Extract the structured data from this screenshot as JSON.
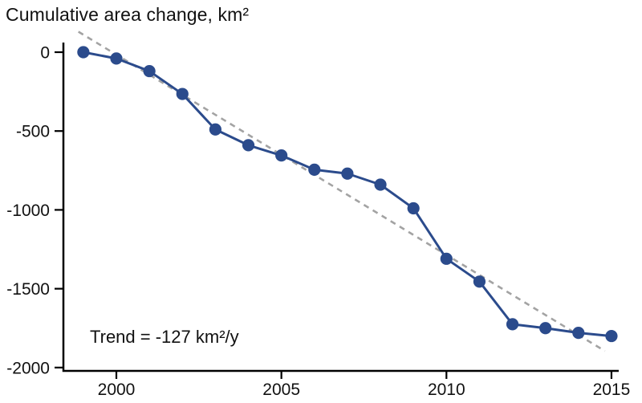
{
  "chart_data": {
    "type": "line",
    "title": "Cumulative area change, km²",
    "xlabel": "",
    "ylabel": "Cumulative area change, km²",
    "x": [
      1999,
      2000,
      2001,
      2002,
      2003,
      2004,
      2005,
      2006,
      2007,
      2008,
      2009,
      2010,
      2011,
      2012,
      2013,
      2014,
      2015
    ],
    "series": [
      {
        "name": "Cumulative area change",
        "values": [
          0,
          -40,
          -120,
          -265,
          -490,
          -590,
          -655,
          -745,
          -770,
          -840,
          -990,
          -1310,
          -1455,
          -1725,
          -1750,
          -1780,
          -1800
        ]
      }
    ],
    "trend": {
      "label": "Trend = -127 km²/y",
      "slope_km2_per_y": -127,
      "line_x": [
        1998.85,
        2014.8
      ],
      "line_y": [
        130,
        -1895
      ],
      "style": "dashed"
    },
    "x_ticks": [
      2000,
      2005,
      2010,
      2015
    ],
    "y_ticks": [
      0,
      -500,
      -1000,
      -1500,
      -2000
    ],
    "xlim": [
      1998.4,
      2015.4
    ],
    "ylim": [
      -2100,
      150
    ],
    "grid": false,
    "legend_position": "none",
    "colors": {
      "series": "#2b4b8c",
      "trend": "#a3a3a3",
      "axis": "#000000",
      "text": "#111111"
    }
  }
}
